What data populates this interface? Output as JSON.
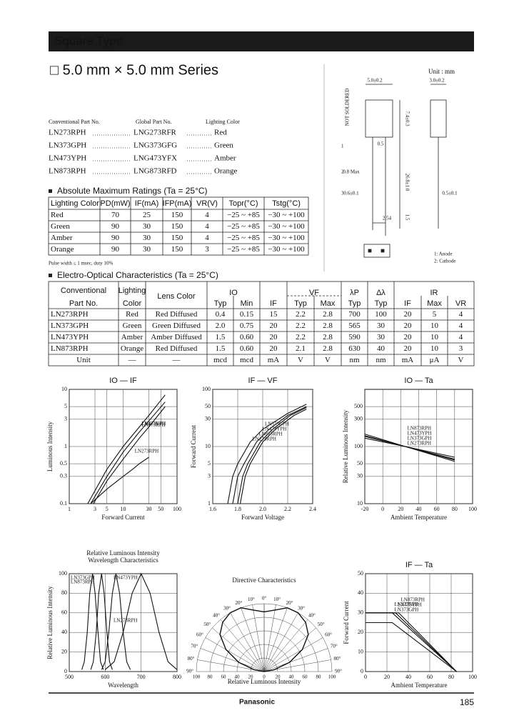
{
  "header": {
    "title": "Square Type"
  },
  "series_title": "□ 5.0 mm × 5.0 mm Series",
  "part_list": {
    "headers": [
      "Conventional Part No.",
      "Global Part No.",
      "Lighting Color"
    ],
    "rows": [
      [
        "LN273RPH",
        "LNG273RFR",
        "Red"
      ],
      [
        "LN373GPH",
        "LNG373GFG",
        "Green"
      ],
      [
        "LN473YPH",
        "LNG473YFX",
        "Amber"
      ],
      [
        "LN873RPH",
        "LNG873RFD",
        "Orange"
      ]
    ]
  },
  "drawing": {
    "unit": "Unit : mm",
    "labels": [
      "5.0±0.2",
      "3.0±0.2",
      "7.4±0.3",
      "26.8±1.0",
      "2.54",
      "0.5",
      "0.8 Max",
      "0.6±0.1",
      "0.5±0.1",
      "1.5",
      "NOT SOLDERED"
    ],
    "callouts": [
      "1",
      "2",
      "3"
    ],
    "pins": [
      "1: Anode",
      "2: Cathode"
    ]
  },
  "abs_max": {
    "title": "Absolute Maximum Ratings (Ta = 25°C)",
    "headers": [
      "Lighting Color",
      "PD(mW)",
      "IF(mA)",
      "IFP(mA)",
      "VR(V)",
      "Topr(°C)",
      "Tstg(°C)"
    ],
    "rows": [
      [
        "Red",
        "70",
        "25",
        "150",
        "4",
        "−25 ~ +85",
        "−30 ~ +100"
      ],
      [
        "Green",
        "90",
        "30",
        "150",
        "4",
        "−25 ~ +85",
        "−30 ~ +100"
      ],
      [
        "Amber",
        "90",
        "30",
        "150",
        "4",
        "−25 ~ +85",
        "−30 ~ +100"
      ],
      [
        "Orange",
        "90",
        "30",
        "150",
        "3",
        "−25 ~ +85",
        "−30 ~ +100"
      ]
    ],
    "note": "Pulse width ≤ 1 msec, duty 10%"
  },
  "eo": {
    "title": "Electro-Optical Characteristics (Ta = 25°C)",
    "head_top": [
      "Conventional",
      "Lighting",
      "Lens Color",
      "IO",
      "VF",
      "λP",
      "Δλ",
      "IR"
    ],
    "head_bottom": [
      "Part No.",
      "Color",
      "Typ",
      "Min",
      "IF",
      "Typ",
      "Max",
      "Typ",
      "Typ",
      "IF",
      "Max",
      "VR"
    ],
    "rows": [
      [
        "LN273RPH",
        "Red",
        "Red Diffused",
        "0.4",
        "0.15",
        "15",
        "2.2",
        "2.8",
        "700",
        "100",
        "20",
        "5",
        "4"
      ],
      [
        "LN373GPH",
        "Green",
        "Green Diffused",
        "2.0",
        "0.75",
        "20",
        "2.2",
        "2.8",
        "565",
        "30",
        "20",
        "10",
        "4"
      ],
      [
        "LN473YPH",
        "Amber",
        "Amber Diffused",
        "1.5",
        "0.60",
        "20",
        "2.2",
        "2.8",
        "590",
        "30",
        "20",
        "10",
        "4"
      ],
      [
        "LN873RPH",
        "Orange",
        "Red Diffused",
        "1.5",
        "0.60",
        "20",
        "2.1",
        "2.8",
        "630",
        "40",
        "20",
        "10",
        "3"
      ],
      [
        "Unit",
        "—",
        "—",
        "mcd",
        "mcd",
        "mA",
        "V",
        "V",
        "nm",
        "nm",
        "mA",
        "μA",
        "V"
      ]
    ]
  },
  "charts": [
    {
      "type": "line",
      "title": "IO — IF",
      "xlabel": "Forward Current",
      "ylabel": "Luminous Intensity",
      "xlog": true,
      "ylog": true,
      "xlim": [
        1,
        100
      ],
      "ylim": [
        0.1,
        10
      ],
      "xticks": [
        1,
        3,
        5,
        10,
        30,
        50,
        100
      ],
      "yticks": [
        0.1,
        0.3,
        0.5,
        1,
        3,
        5,
        10
      ],
      "series": [
        {
          "name": "LN373GPH",
          "x": [
            2.2,
            5,
            10,
            20,
            30,
            60
          ],
          "values": [
            0.1,
            0.4,
            1,
            2.2,
            3.5,
            8
          ]
        },
        {
          "name": "LN473YPH",
          "x": [
            2.5,
            5,
            10,
            20,
            30,
            60
          ],
          "values": [
            0.1,
            0.3,
            0.8,
            1.8,
            2.8,
            6
          ]
        },
        {
          "name": "LN873RPH",
          "x": [
            2.8,
            5,
            10,
            20,
            30,
            60
          ],
          "values": [
            0.1,
            0.25,
            0.6,
            1.4,
            2.2,
            5
          ]
        },
        {
          "name": "LN273RPH",
          "x": [
            2.5,
            5,
            10,
            15,
            20,
            30
          ],
          "values": [
            0.1,
            0.18,
            0.3,
            0.4,
            0.5,
            0.65
          ]
        }
      ]
    },
    {
      "type": "line",
      "title": "IF — VF",
      "xlabel": "Forward Voltage",
      "ylabel": "Forward Current",
      "xlog": false,
      "ylog": true,
      "xlim": [
        1.6,
        2.4
      ],
      "ylim": [
        1,
        100
      ],
      "xticks": [
        1.6,
        1.8,
        {
          "value": 2,
          "label": "2.0"
        },
        2.2,
        2.4
      ],
      "yticks": [
        1,
        3,
        5,
        10,
        30,
        50,
        100
      ],
      "series": [
        {
          "name": "LN273RPH",
          "x": [
            1.72,
            1.76,
            1.8,
            1.9,
            2.0,
            2.2,
            2.35
          ],
          "values": [
            1,
            3,
            5,
            12,
            20,
            38,
            55
          ]
        },
        {
          "name": "LN873RPH",
          "x": [
            1.76,
            1.8,
            1.85,
            1.95,
            2.05,
            2.2,
            2.35
          ],
          "values": [
            1,
            3,
            5,
            12,
            20,
            35,
            50
          ]
        },
        {
          "name": "LN473YPH",
          "x": [
            1.8,
            1.84,
            1.88,
            1.98,
            2.08,
            2.22,
            2.35
          ],
          "values": [
            1,
            3,
            5,
            12,
            20,
            35,
            48
          ]
        },
        {
          "name": "LN373GPH",
          "x": [
            1.82,
            1.86,
            1.9,
            2.0,
            2.1,
            2.25,
            2.35
          ],
          "values": [
            1,
            3,
            5,
            12,
            20,
            35,
            45
          ]
        }
      ]
    },
    {
      "type": "line",
      "title": "IO — Ta",
      "xlabel": "Ambient Temperature",
      "ylabel": "Relative Luminous Intensity",
      "xlog": false,
      "ylog": true,
      "xlim": [
        -20,
        100
      ],
      "ylim": [
        10,
        1000
      ],
      "xticks": [
        -20,
        0,
        20,
        40,
        60,
        80,
        100
      ],
      "yticks": [
        10,
        30,
        50,
        100,
        300,
        500
      ],
      "series": [
        {
          "name": "LN273RPH",
          "x": [
            -20,
            25,
            80
          ],
          "values": [
            165,
            100,
            55
          ]
        },
        {
          "name": "LN373GPH",
          "x": [
            -20,
            25,
            80
          ],
          "values": [
            140,
            100,
            65
          ]
        },
        {
          "name": "LN473YPH",
          "x": [
            -20,
            25,
            80
          ],
          "values": [
            150,
            100,
            60
          ]
        },
        {
          "name": "LN873RPH",
          "x": [
            -20,
            25,
            80
          ],
          "values": [
            155,
            100,
            58
          ]
        }
      ]
    },
    {
      "type": "line",
      "title": "Relative Luminous Intensity",
      "subtitle": "Wavelength Characteristics",
      "xlabel": "Wavelength",
      "ylabel": "Relative Luminous Intensity",
      "xlog": false,
      "ylog": false,
      "xlim": [
        500,
        800
      ],
      "ylim": [
        0,
        100
      ],
      "xticks": [
        500,
        600,
        700,
        800
      ],
      "yticks": [
        0,
        20,
        40,
        60,
        80,
        100
      ],
      "series": [
        {
          "name": "LN373GPH",
          "x": [
            535,
            542,
            550,
            557,
            565,
            572,
            580,
            587,
            595
          ],
          "values": [
            2,
            10,
            40,
            80,
            100,
            80,
            40,
            10,
            2
          ]
        },
        {
          "name": "LN473YPH",
          "x": [
            560,
            567,
            575,
            582,
            590,
            597,
            605,
            612,
            620
          ],
          "values": [
            2,
            10,
            40,
            80,
            100,
            80,
            40,
            10,
            2
          ]
        },
        {
          "name": "LN873RPH",
          "x": [
            590,
            600,
            610,
            620,
            630,
            640,
            650,
            660,
            670
          ],
          "values": [
            2,
            10,
            40,
            80,
            100,
            80,
            40,
            10,
            2
          ]
        },
        {
          "name": "LN273RPH",
          "x": [
            600,
            625,
            650,
            675,
            700,
            725,
            750,
            775,
            800
          ],
          "values": [
            2,
            10,
            40,
            80,
            100,
            80,
            40,
            10,
            2
          ]
        }
      ]
    },
    {
      "type": "polar",
      "title": "Directive Characteristics",
      "xlabel": "Relative Luminous Intensity",
      "angle_ticks": [
        {
          "value": 0,
          "label": "0°"
        },
        {
          "value": 10,
          "label": "10°"
        },
        {
          "value": 20,
          "label": "20°"
        },
        {
          "value": 30,
          "label": "30°"
        },
        {
          "value": 40,
          "label": "40°"
        },
        {
          "value": 50,
          "label": "50°"
        },
        {
          "value": 60,
          "label": "60°"
        },
        {
          "value": 70,
          "label": "70°"
        },
        {
          "value": 80,
          "label": "80°"
        },
        {
          "value": 90,
          "label": "90°"
        }
      ],
      "rticks": [
        0,
        20,
        40,
        60,
        80,
        100
      ],
      "angles": [
        0,
        10,
        20,
        30,
        40,
        50,
        60,
        70,
        80,
        90
      ],
      "values": [
        88,
        92,
        100,
        100,
        95,
        85,
        65,
        40,
        15,
        0
      ]
    },
    {
      "type": "line",
      "title": "IF — Ta",
      "xlabel": "Ambient Temperature",
      "ylabel": "Forward Current",
      "xlog": false,
      "ylog": false,
      "xlim": [
        0,
        100
      ],
      "ylim": [
        0,
        50
      ],
      "xticks": [
        0,
        20,
        40,
        60,
        80,
        100
      ],
      "yticks": [
        0,
        10,
        20,
        30,
        40,
        50
      ],
      "series": [
        {
          "name": "LN373GPH",
          "x": [
            0,
            25,
            85
          ],
          "values": [
            30,
            30,
            0
          ]
        },
        {
          "name": "LN473YPH",
          "x": [
            0,
            28,
            85
          ],
          "values": [
            30,
            30,
            0
          ]
        },
        {
          "name": "LN873RPH",
          "x": [
            0,
            31,
            85
          ],
          "values": [
            30,
            30,
            0
          ]
        },
        {
          "name": "LN273RPH",
          "x": [
            0,
            25,
            85
          ],
          "values": [
            25,
            25,
            0
          ]
        }
      ]
    }
  ],
  "footer": {
    "brand": "Panasonic",
    "page": "185"
  }
}
